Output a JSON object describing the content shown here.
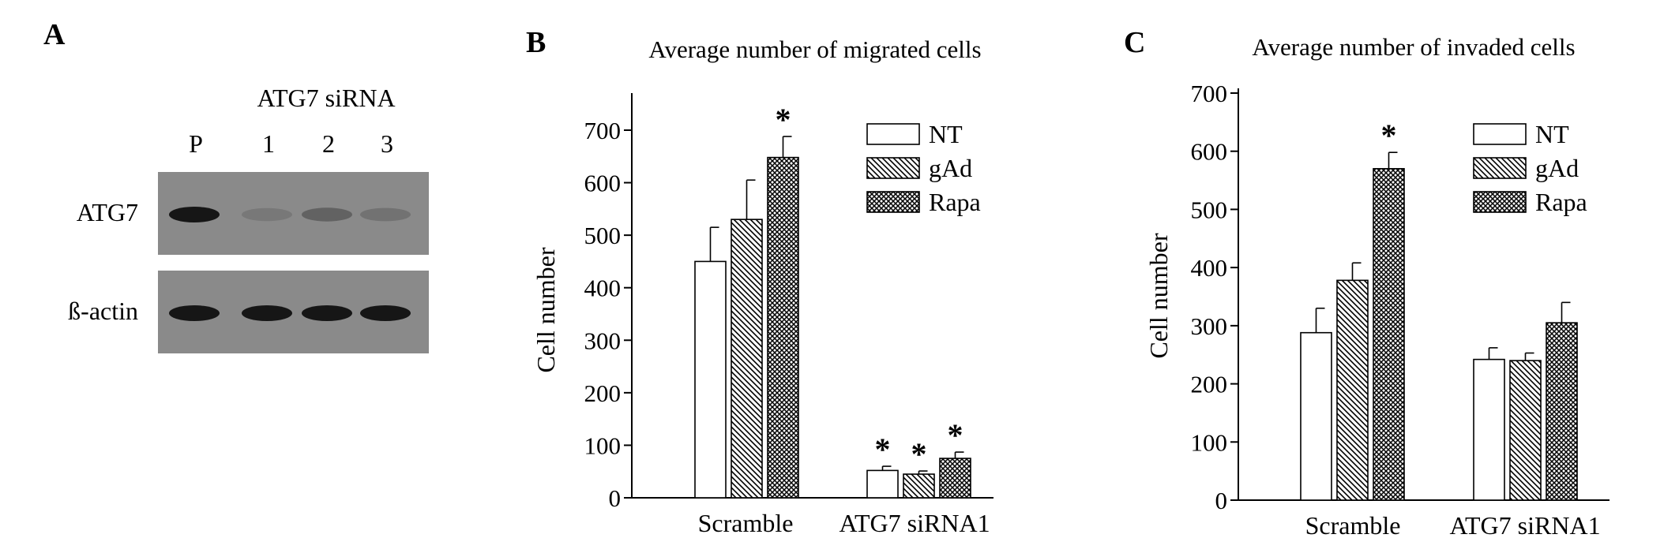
{
  "panels": {
    "a": {
      "letter": "A"
    },
    "b": {
      "letter": "B"
    },
    "c": {
      "letter": "C"
    }
  },
  "blot": {
    "group_label": "ATG7 siRNA",
    "lanes": [
      "P",
      "1",
      "2",
      "3"
    ],
    "rows": [
      {
        "label": "ATG7",
        "band_intensity": [
          1.0,
          0.15,
          0.35,
          0.2
        ]
      },
      {
        "label": "ß-actin",
        "band_intensity": [
          1.0,
          1.0,
          1.0,
          1.0
        ]
      }
    ]
  },
  "colors": {
    "bar_fill": "#ffffff",
    "stroke": "#000000",
    "blot_bg": "#8a8a8a",
    "band": "#161616"
  },
  "chart_data": [
    {
      "type": "bar",
      "title": "Average number of migrated cells",
      "xlabel": "",
      "ylabel": "Cell number",
      "ylim": [
        0,
        700
      ],
      "yticks": [
        "0",
        "100",
        "200",
        "300",
        "400",
        "500",
        "600",
        "700"
      ],
      "categories": [
        "Scramble",
        "ATG7 siRNA1"
      ],
      "legend_position": "top-right",
      "series": [
        {
          "name": "NT",
          "pattern": "none",
          "values": [
            450,
            52
          ],
          "errors": [
            65,
            8
          ],
          "significant": [
            false,
            true
          ]
        },
        {
          "name": "gAd",
          "pattern": "diagonal",
          "values": [
            530,
            45
          ],
          "errors": [
            75,
            6
          ],
          "significant": [
            false,
            true
          ]
        },
        {
          "name": "Rapa",
          "pattern": "crosshatch",
          "values": [
            648,
            75
          ],
          "errors": [
            40,
            12
          ],
          "significant": [
            true,
            true
          ]
        }
      ],
      "significance_marker": "*"
    },
    {
      "type": "bar",
      "title": "Average number of invaded cells",
      "xlabel": "",
      "ylabel": "Cell number",
      "ylim": [
        0,
        700
      ],
      "yticks": [
        "0",
        "100",
        "200",
        "300",
        "400",
        "500",
        "600",
        "700"
      ],
      "categories": [
        "Scramble",
        "ATG7 siRNA1"
      ],
      "legend_position": "top-right",
      "series": [
        {
          "name": "NT",
          "pattern": "none",
          "values": [
            288,
            242
          ],
          "errors": [
            42,
            20
          ],
          "significant": [
            false,
            false
          ]
        },
        {
          "name": "gAd",
          "pattern": "diagonal",
          "values": [
            378,
            240
          ],
          "errors": [
            30,
            13
          ],
          "significant": [
            false,
            false
          ]
        },
        {
          "name": "Rapa",
          "pattern": "crosshatch",
          "values": [
            570,
            305
          ],
          "errors": [
            28,
            35
          ],
          "significant": [
            true,
            false
          ]
        }
      ],
      "significance_marker": "*"
    }
  ]
}
